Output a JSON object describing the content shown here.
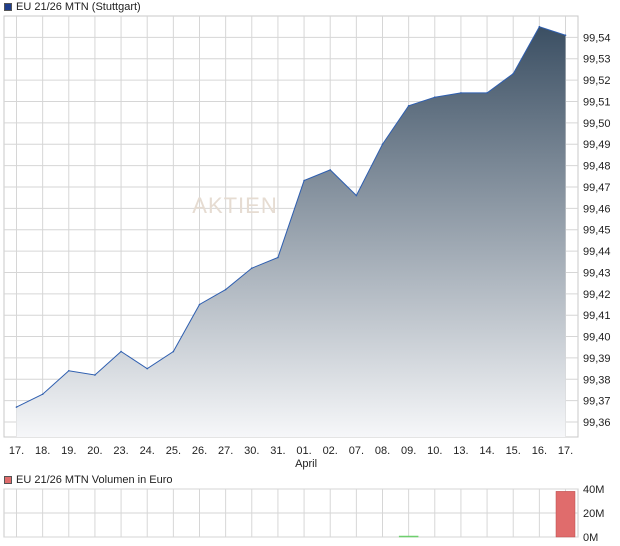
{
  "colors": {
    "series_main": "#3b4f63",
    "series_volume": "#e06c6c",
    "grid": "#d6d6d6",
    "volume_alt": "#6fcf6f"
  },
  "price_legend": {
    "label": "EU 21/26 MTN (Stuttgart)"
  },
  "volume_legend": {
    "label": "EU 21/26 MTN Volumen in Euro"
  },
  "watermark": "AKTIEN",
  "chart_data": [
    {
      "type": "area",
      "title": "EU 21/26 MTN (Stuttgart)",
      "categories": [
        "17.",
        "18.",
        "19.",
        "20.",
        "23.",
        "24.",
        "25.",
        "26.",
        "27.",
        "30.",
        "31.",
        "01.",
        "02.",
        "07.",
        "08.",
        "09.",
        "10.",
        "13.",
        "14.",
        "15.",
        "16.",
        "17."
      ],
      "x_sublabel": {
        "index": 11,
        "text": "April"
      },
      "series": [
        {
          "name": "EU 21/26 MTN (Stuttgart)",
          "values": [
            99.367,
            99.373,
            99.384,
            99.382,
            99.393,
            99.385,
            99.393,
            99.415,
            99.422,
            99.432,
            99.437,
            99.473,
            99.478,
            99.466,
            99.49,
            99.508,
            99.512,
            99.514,
            99.514,
            99.523,
            99.545,
            99.541
          ]
        }
      ],
      "y_ticks": [
        "99,36",
        "99,37",
        "99,38",
        "99,39",
        "99,40",
        "99,41",
        "99,42",
        "99,43",
        "99,44",
        "99,45",
        "99,46",
        "99,47",
        "99,48",
        "99,49",
        "99,50",
        "99,51",
        "99,52",
        "99,53",
        "99,54"
      ],
      "ylim": [
        99.353,
        99.55
      ],
      "y_axis_side": "right",
      "grid": true
    },
    {
      "type": "bar",
      "title": "EU 21/26 MTN Volumen in Euro",
      "series": [
        {
          "name": "EU 21/26 MTN Volumen in Euro",
          "values": [
            0,
            0,
            0,
            0,
            0,
            0,
            0,
            0,
            0,
            0,
            0,
            0,
            0,
            0,
            0,
            0.2,
            0,
            0,
            0,
            0,
            0,
            38
          ]
        }
      ],
      "value_unit": "M",
      "y_ticks": [
        "0M",
        "20M",
        "40M"
      ],
      "ylim": [
        0,
        40
      ],
      "y_axis_side": "right",
      "grid": true
    }
  ]
}
